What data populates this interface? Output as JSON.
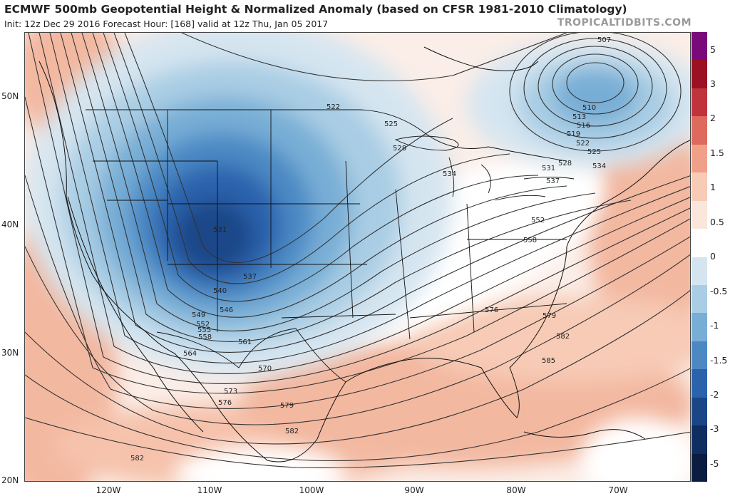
{
  "header": {
    "title": "ECMWF 500mb Geopotential Height & Normalized Anomaly (based on CFSR 1981-2010 Climatology)",
    "subtitle": "Init: 12z Dec 29 2016   Forecast Hour: [168]   valid at 12z Thu, Jan 05 2017",
    "credit": "TROPICALTIDBITS.COM"
  },
  "map": {
    "lat_labels": [
      "50N",
      "40N",
      "30N",
      "20N"
    ],
    "lon_labels": [
      "120W",
      "110W",
      "100W",
      "90W",
      "80W",
      "70W"
    ],
    "contour_labels": [
      "507",
      "510",
      "513",
      "516",
      "519",
      "522",
      "525",
      "528",
      "531",
      "534",
      "537",
      "540",
      "546",
      "549",
      "552",
      "555",
      "558",
      "561",
      "564",
      "570",
      "573",
      "576",
      "579",
      "582",
      "585",
      "522",
      "525",
      "528",
      "531",
      "534",
      "537",
      "552",
      "558",
      "576",
      "579",
      "582",
      "582"
    ]
  },
  "colorbar": {
    "labels": [
      "5",
      "3",
      "2",
      "1.5",
      "1",
      "0.5",
      "0",
      "-0.5",
      "-1",
      "-1.5",
      "-2",
      "-3",
      "-5"
    ],
    "colors": [
      "#7a0a7a",
      "#9b1022",
      "#c0333d",
      "#dd6a5c",
      "#f0a088",
      "#f7cbb6",
      "#fbe6dc",
      "#ffffff",
      "#d5e5f0",
      "#a9cde4",
      "#78aed6",
      "#4c89c4",
      "#2a62ac",
      "#1a4688",
      "#102d62",
      "#0a1c40"
    ]
  }
}
